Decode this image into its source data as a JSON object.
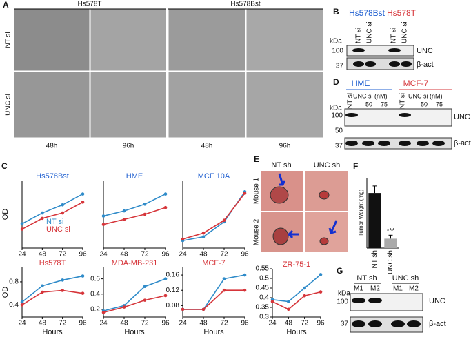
{
  "panel_a": {
    "letter": "A",
    "cell_lines": [
      "Hs578T",
      "Hs578Bst"
    ],
    "rows": [
      "NT si",
      "UNC si"
    ],
    "times": [
      "48h",
      "96h",
      "48h",
      "96h"
    ]
  },
  "panel_b": {
    "letter": "B",
    "cell_lines": [
      "Hs578Bst",
      "Hs578T"
    ],
    "lanes": [
      "NT si",
      "UNC si",
      "NT si",
      "UNC si"
    ],
    "unit": "kDa",
    "markers": [
      "100",
      "37"
    ],
    "proteins": [
      "UNC",
      "β-act"
    ]
  },
  "panel_c": {
    "letter": "C"
  },
  "panel_d": {
    "letter": "D",
    "cell_lines": [
      "HME",
      "MCF-7"
    ],
    "controls": [
      "NT si",
      "NT si"
    ],
    "dose_labels": [
      "UNC si (nM)",
      "UNC si (nM)"
    ],
    "doses": [
      "50",
      "75",
      "50",
      "75"
    ],
    "unit": "kDa",
    "markers": [
      "100",
      "50",
      "37"
    ],
    "proteins": [
      "UNC",
      "β-act"
    ]
  },
  "panel_e": {
    "letter": "E",
    "groups": [
      "NT sh",
      "UNC sh"
    ],
    "rows": [
      "Mouse 1",
      "Mouse 2"
    ]
  },
  "panel_f": {
    "letter": "F"
  },
  "panel_g": {
    "letter": "G",
    "groups": [
      "NT sh",
      "UNC sh"
    ],
    "lanes": [
      "M1",
      "M2",
      "M1",
      "M2"
    ],
    "unit": "kDa",
    "markers": [
      "100",
      "37"
    ],
    "proteins": [
      "UNC",
      "β-act"
    ]
  },
  "chart_data": [
    {
      "type": "line",
      "title": "Hs578Bst",
      "title_color": "#1f5fd0",
      "y_label": "OD",
      "x": [
        24,
        48,
        72,
        96
      ],
      "xlim": [
        24,
        96
      ],
      "xticks": [
        24,
        48,
        72,
        96
      ],
      "ylim": [
        0.1,
        0.35
      ],
      "series": [
        {
          "name": "NT si",
          "color": "#2f8bc9",
          "values": [
            0.19,
            0.23,
            0.26,
            0.3
          ]
        },
        {
          "name": "UNC si",
          "color": "#d6353a",
          "values": [
            0.17,
            0.21,
            0.23,
            0.27
          ]
        }
      ]
    },
    {
      "type": "line",
      "title": "HME",
      "title_color": "#1f5fd0",
      "x": [
        24,
        48,
        72,
        96
      ],
      "xlim": [
        24,
        96
      ],
      "xticks": [
        24,
        48,
        72,
        96
      ],
      "ylim": [
        0.1,
        0.5
      ],
      "series": [
        {
          "color": "#2f8bc9",
          "values": [
            0.29,
            0.32,
            0.36,
            0.42
          ]
        },
        {
          "color": "#d6353a",
          "values": [
            0.24,
            0.27,
            0.3,
            0.34
          ]
        }
      ]
    },
    {
      "type": "line",
      "title": "MCF 10A",
      "title_color": "#1f5fd0",
      "x": [
        24,
        48,
        72,
        96
      ],
      "xlim": [
        24,
        96
      ],
      "xticks": [
        24,
        48,
        72,
        96
      ],
      "ylim": [
        0,
        0.9
      ],
      "series": [
        {
          "color": "#2f8bc9",
          "values": [
            0.1,
            0.15,
            0.35,
            0.75
          ]
        },
        {
          "color": "#d6353a",
          "values": [
            0.12,
            0.2,
            0.37,
            0.73
          ]
        }
      ]
    },
    {
      "type": "line",
      "title": "Hs578T",
      "title_color": "#d6353a",
      "y_label": "OD",
      "x_label": "Hours",
      "x": [
        24,
        48,
        72,
        96
      ],
      "xlim": [
        24,
        96
      ],
      "xticks": [
        24,
        48,
        72,
        96
      ],
      "ylim": [
        0.19,
        1.05
      ],
      "yticks": [
        0.4,
        0.8
      ],
      "series": [
        {
          "color": "#2f8bc9",
          "values": [
            0.45,
            0.73,
            0.83,
            0.9
          ]
        },
        {
          "color": "#d6353a",
          "values": [
            0.4,
            0.62,
            0.65,
            0.6
          ]
        }
      ]
    },
    {
      "type": "line",
      "title": "MDA-MB-231",
      "title_color": "#d6353a",
      "x_label": "Hours",
      "x": [
        24,
        48,
        72,
        96
      ],
      "xlim": [
        24,
        96
      ],
      "xticks": [
        24,
        48,
        72,
        96
      ],
      "ylim": [
        0.1,
        0.75
      ],
      "yticks": [
        0.2,
        0.4,
        0.6
      ],
      "series": [
        {
          "color": "#2f8bc9",
          "values": [
            0.18,
            0.25,
            0.5,
            0.6
          ]
        },
        {
          "color": "#d6353a",
          "values": [
            0.16,
            0.23,
            0.32,
            0.38
          ]
        }
      ]
    },
    {
      "type": "line",
      "title": "MCF-7",
      "title_color": "#d6353a",
      "x_label": "Hours",
      "x": [
        24,
        48,
        72,
        96
      ],
      "xlim": [
        24,
        96
      ],
      "xticks": [
        24,
        48,
        72,
        96
      ],
      "ylim": [
        0.05,
        0.18
      ],
      "yticks": [
        0.08,
        0.12,
        0.16
      ],
      "series": [
        {
          "color": "#2f8bc9",
          "values": [
            0.07,
            0.07,
            0.15,
            0.16
          ]
        },
        {
          "color": "#d6353a",
          "values": [
            0.07,
            0.07,
            0.12,
            0.12
          ]
        }
      ]
    },
    {
      "type": "line",
      "title": "ZR-75-1",
      "title_color": "#d6353a",
      "x_label": "Hours",
      "x": [
        24,
        48,
        72,
        96
      ],
      "xlim": [
        24,
        96
      ],
      "xticks": [
        24,
        48,
        72,
        96
      ],
      "ylim": [
        0.3,
        0.55
      ],
      "yticks": [
        0.3,
        0.35,
        0.4,
        0.45,
        0.5,
        0.55
      ],
      "series": [
        {
          "color": "#2f8bc9",
          "values": [
            0.39,
            0.38,
            0.45,
            0.52
          ]
        },
        {
          "color": "#d6353a",
          "values": [
            0.38,
            0.34,
            0.41,
            0.43
          ]
        }
      ]
    },
    {
      "type": "bar",
      "y_label": "Tumor Weight (mg)",
      "categories": [
        "NT sh",
        "UNC sh"
      ],
      "values": [
        235,
        40
      ],
      "errors": [
        30,
        15
      ],
      "colors": [
        "#111111",
        "#aaaaaa"
      ],
      "ylim": [
        0,
        300
      ],
      "annotation": "***"
    }
  ]
}
